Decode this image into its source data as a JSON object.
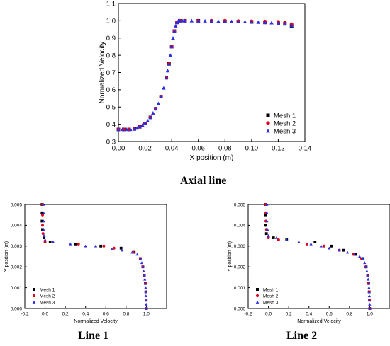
{
  "captions": {
    "axial": "Axial line",
    "line1": "Line 1",
    "line2": "Line 2"
  },
  "colors": {
    "mesh1": "#000000",
    "mesh2": "#e0001b",
    "mesh3": "#2e2ee0"
  },
  "chart_data": [
    {
      "type": "scatter",
      "id": "axial",
      "title": "",
      "xlabel": "X position (m)",
      "ylabel": "Normalized Velocity",
      "xlim": [
        0.0,
        0.14
      ],
      "ylim": [
        0.3,
        1.1
      ],
      "xticks": [
        "0.00",
        "0.02",
        "0.04",
        "0.06",
        "0.08",
        "0.10",
        "0.12",
        "0.14"
      ],
      "yticks": [
        "0.3",
        "0.4",
        "0.5",
        "0.6",
        "0.7",
        "0.8",
        "0.9",
        "1.0",
        "1.1"
      ],
      "legend": {
        "position": "bottom-right",
        "entries": [
          "Mesh 1",
          "Mesh 2",
          "Mesh 3"
        ]
      },
      "series": [
        {
          "name": "Mesh 1",
          "marker": "square",
          "points": [
            [
              0.0,
              0.37
            ],
            [
              0.004,
              0.37
            ],
            [
              0.008,
              0.37
            ],
            [
              0.012,
              0.373
            ],
            [
              0.016,
              0.385
            ],
            [
              0.02,
              0.405
            ],
            [
              0.024,
              0.44
            ],
            [
              0.028,
              0.49
            ],
            [
              0.032,
              0.56
            ],
            [
              0.036,
              0.67
            ],
            [
              0.038,
              0.75
            ],
            [
              0.04,
              0.85
            ],
            [
              0.042,
              0.94
            ],
            [
              0.044,
              0.99
            ],
            [
              0.046,
              1.0
            ],
            [
              0.05,
              1.0
            ],
            [
              0.06,
              1.0
            ],
            [
              0.07,
              0.998
            ],
            [
              0.08,
              0.997
            ],
            [
              0.09,
              0.995
            ],
            [
              0.1,
              0.993
            ],
            [
              0.11,
              0.99
            ],
            [
              0.12,
              0.985
            ],
            [
              0.125,
              0.982
            ],
            [
              0.13,
              0.97
            ]
          ]
        },
        {
          "name": "Mesh 2",
          "marker": "circle",
          "points": [
            [
              0.0,
              0.37
            ],
            [
              0.004,
              0.37
            ],
            [
              0.008,
              0.37
            ],
            [
              0.012,
              0.373
            ],
            [
              0.016,
              0.385
            ],
            [
              0.02,
              0.405
            ],
            [
              0.024,
              0.44
            ],
            [
              0.028,
              0.49
            ],
            [
              0.032,
              0.56
            ],
            [
              0.036,
              0.67
            ],
            [
              0.038,
              0.75
            ],
            [
              0.04,
              0.85
            ],
            [
              0.042,
              0.94
            ],
            [
              0.044,
              0.99
            ],
            [
              0.046,
              1.0
            ],
            [
              0.05,
              1.0
            ],
            [
              0.06,
              1.0
            ],
            [
              0.07,
              1.0
            ],
            [
              0.08,
              1.0
            ],
            [
              0.09,
              0.998
            ],
            [
              0.1,
              0.997
            ],
            [
              0.11,
              0.996
            ],
            [
              0.12,
              0.994
            ],
            [
              0.125,
              0.99
            ],
            [
              0.13,
              0.98
            ]
          ]
        },
        {
          "name": "Mesh 3",
          "marker": "triangle",
          "points": [
            [
              0.0,
              0.37
            ],
            [
              0.003,
              0.37
            ],
            [
              0.006,
              0.37
            ],
            [
              0.009,
              0.37
            ],
            [
              0.012,
              0.372
            ],
            [
              0.014,
              0.378
            ],
            [
              0.016,
              0.386
            ],
            [
              0.018,
              0.395
            ],
            [
              0.02,
              0.407
            ],
            [
              0.022,
              0.42
            ],
            [
              0.024,
              0.44
            ],
            [
              0.026,
              0.465
            ],
            [
              0.028,
              0.49
            ],
            [
              0.03,
              0.52
            ],
            [
              0.032,
              0.56
            ],
            [
              0.034,
              0.61
            ],
            [
              0.036,
              0.67
            ],
            [
              0.037,
              0.71
            ],
            [
              0.038,
              0.75
            ],
            [
              0.039,
              0.8
            ],
            [
              0.04,
              0.85
            ],
            [
              0.041,
              0.9
            ],
            [
              0.042,
              0.94
            ],
            [
              0.043,
              0.97
            ],
            [
              0.044,
              0.99
            ],
            [
              0.045,
              1.0
            ],
            [
              0.046,
              1.0
            ],
            [
              0.048,
              1.0
            ],
            [
              0.05,
              1.0
            ],
            [
              0.055,
              1.0
            ],
            [
              0.06,
              0.999
            ],
            [
              0.065,
              0.999
            ],
            [
              0.07,
              0.998
            ],
            [
              0.075,
              0.997
            ],
            [
              0.08,
              0.997
            ],
            [
              0.085,
              0.996
            ],
            [
              0.09,
              0.995
            ],
            [
              0.095,
              0.994
            ],
            [
              0.1,
              0.993
            ],
            [
              0.105,
              0.991
            ],
            [
              0.11,
              0.99
            ],
            [
              0.115,
              0.988
            ],
            [
              0.12,
              0.985
            ],
            [
              0.125,
              0.982
            ],
            [
              0.13,
              0.972
            ]
          ]
        }
      ]
    },
    {
      "type": "scatter",
      "id": "line1",
      "title": "",
      "xlabel": "Normalized Velocity",
      "ylabel": "Y position (m)",
      "xlim": [
        -0.2,
        1.2
      ],
      "ylim": [
        0.0,
        0.005
      ],
      "xticks": [
        "-0.2",
        "0.0",
        "0.2",
        "0.4",
        "0.6",
        "0.8",
        "1.0"
      ],
      "yticks": [
        "0.000",
        "0.001",
        "0.002",
        "0.003",
        "0.004",
        "0.005"
      ],
      "legend": {
        "position": "bottom-left",
        "entries": [
          "Mesh 1",
          "Mesh 2",
          "Mesh 3"
        ]
      },
      "series": [
        {
          "name": "Mesh 1",
          "marker": "square",
          "points": [
            [
              1.0,
              0.0
            ],
            [
              0.998,
              0.0004
            ],
            [
              0.995,
              0.0008
            ],
            [
              0.99,
              0.0012
            ],
            [
              0.98,
              0.0016
            ],
            [
              0.965,
              0.002
            ],
            [
              0.94,
              0.0024
            ],
            [
              0.88,
              0.0027
            ],
            [
              0.75,
              0.0029
            ],
            [
              0.55,
              0.003
            ],
            [
              0.3,
              0.0031
            ],
            [
              0.05,
              0.0032
            ],
            [
              -0.01,
              0.0034
            ],
            [
              -0.025,
              0.0038
            ],
            [
              -0.03,
              0.0042
            ],
            [
              -0.03,
              0.0046
            ],
            [
              -0.03,
              0.005
            ]
          ]
        },
        {
          "name": "Mesh 2",
          "marker": "circle",
          "points": [
            [
              1.0,
              0.0
            ],
            [
              0.998,
              0.0004
            ],
            [
              0.995,
              0.0008
            ],
            [
              0.99,
              0.0012
            ],
            [
              0.98,
              0.0016
            ],
            [
              0.965,
              0.002
            ],
            [
              0.94,
              0.0024
            ],
            [
              0.87,
              0.0027
            ],
            [
              0.68,
              0.0029
            ],
            [
              0.58,
              0.003
            ],
            [
              0.33,
              0.0031
            ],
            [
              0.0,
              0.0032
            ],
            [
              -0.02,
              0.0036
            ],
            [
              -0.025,
              0.004
            ],
            [
              -0.025,
              0.0045
            ],
            [
              -0.025,
              0.005
            ]
          ]
        },
        {
          "name": "Mesh 3",
          "marker": "triangle",
          "points": [
            [
              1.0,
              0.0
            ],
            [
              0.999,
              0.0002
            ],
            [
              0.998,
              0.0004
            ],
            [
              0.996,
              0.0006
            ],
            [
              0.995,
              0.0008
            ],
            [
              0.993,
              0.001
            ],
            [
              0.99,
              0.0012
            ],
            [
              0.985,
              0.0014
            ],
            [
              0.98,
              0.0016
            ],
            [
              0.973,
              0.0018
            ],
            [
              0.965,
              0.002
            ],
            [
              0.955,
              0.0022
            ],
            [
              0.94,
              0.0024
            ],
            [
              0.91,
              0.0026
            ],
            [
              0.86,
              0.0027
            ],
            [
              0.76,
              0.0028
            ],
            [
              0.66,
              0.00285
            ],
            [
              0.5,
              0.003
            ],
            [
              0.4,
              0.003
            ],
            [
              0.25,
              0.0031
            ],
            [
              0.08,
              0.0032
            ],
            [
              0.0,
              0.0033
            ],
            [
              -0.01,
              0.0035
            ],
            [
              -0.015,
              0.0038
            ],
            [
              -0.015,
              0.0042
            ],
            [
              -0.015,
              0.0046
            ],
            [
              -0.015,
              0.005
            ]
          ]
        }
      ]
    },
    {
      "type": "scatter",
      "id": "line2",
      "title": "",
      "xlabel": "Normalized Velocity",
      "ylabel": "Y position (m)",
      "xlim": [
        -0.2,
        1.2
      ],
      "ylim": [
        0.0,
        0.005
      ],
      "xticks": [
        "-0.2",
        "0.0",
        "0.2",
        "0.4",
        "0.6",
        "0.8",
        "1.0"
      ],
      "yticks": [
        "0.000",
        "0.001",
        "0.002",
        "0.003",
        "0.004",
        "0.005"
      ],
      "legend": {
        "position": "bottom-left",
        "entries": [
          "Mesh 1",
          "Mesh 2",
          "Mesh 3"
        ]
      },
      "series": [
        {
          "name": "Mesh 1",
          "marker": "square",
          "points": [
            [
              1.0,
              0.0
            ],
            [
              0.998,
              0.0004
            ],
            [
              0.995,
              0.0008
            ],
            [
              0.99,
              0.0012
            ],
            [
              0.98,
              0.0016
            ],
            [
              0.965,
              0.002
            ],
            [
              0.93,
              0.0024
            ],
            [
              0.86,
              0.0026
            ],
            [
              0.74,
              0.0028
            ],
            [
              0.62,
              0.003
            ],
            [
              0.46,
              0.0032
            ],
            [
              0.18,
              0.0033
            ],
            [
              0.05,
              0.0034
            ],
            [
              -0.02,
              0.0036
            ],
            [
              -0.03,
              0.004
            ],
            [
              -0.03,
              0.0045
            ],
            [
              -0.03,
              0.005
            ]
          ]
        },
        {
          "name": "Mesh 2",
          "marker": "circle",
          "points": [
            [
              1.0,
              0.0
            ],
            [
              0.998,
              0.0004
            ],
            [
              0.995,
              0.0008
            ],
            [
              0.99,
              0.0012
            ],
            [
              0.98,
              0.0016
            ],
            [
              0.96,
              0.002
            ],
            [
              0.92,
              0.0024
            ],
            [
              0.84,
              0.0026
            ],
            [
              0.7,
              0.0028
            ],
            [
              0.55,
              0.003
            ],
            [
              0.38,
              0.0031
            ],
            [
              0.1,
              0.0033
            ],
            [
              0.0,
              0.0034
            ],
            [
              -0.02,
              0.0038
            ],
            [
              -0.025,
              0.0042
            ],
            [
              -0.025,
              0.0046
            ],
            [
              -0.025,
              0.005
            ]
          ]
        },
        {
          "name": "Mesh 3",
          "marker": "triangle",
          "points": [
            [
              1.0,
              0.0
            ],
            [
              0.999,
              0.0002
            ],
            [
              0.998,
              0.0004
            ],
            [
              0.996,
              0.0006
            ],
            [
              0.995,
              0.0008
            ],
            [
              0.993,
              0.001
            ],
            [
              0.99,
              0.0012
            ],
            [
              0.985,
              0.0014
            ],
            [
              0.98,
              0.0016
            ],
            [
              0.972,
              0.0018
            ],
            [
              0.962,
              0.002
            ],
            [
              0.95,
              0.0022
            ],
            [
              0.93,
              0.0024
            ],
            [
              0.9,
              0.0025
            ],
            [
              0.85,
              0.0026
            ],
            [
              0.78,
              0.0027
            ],
            [
              0.7,
              0.0028
            ],
            [
              0.6,
              0.0029
            ],
            [
              0.52,
              0.003
            ],
            [
              0.42,
              0.0031
            ],
            [
              0.3,
              0.0032
            ],
            [
              0.18,
              0.0033
            ],
            [
              0.08,
              0.0034
            ],
            [
              0.0,
              0.0035
            ],
            [
              -0.01,
              0.0038
            ],
            [
              -0.015,
              0.0042
            ],
            [
              -0.015,
              0.0046
            ],
            [
              -0.015,
              0.005
            ]
          ]
        }
      ]
    }
  ]
}
